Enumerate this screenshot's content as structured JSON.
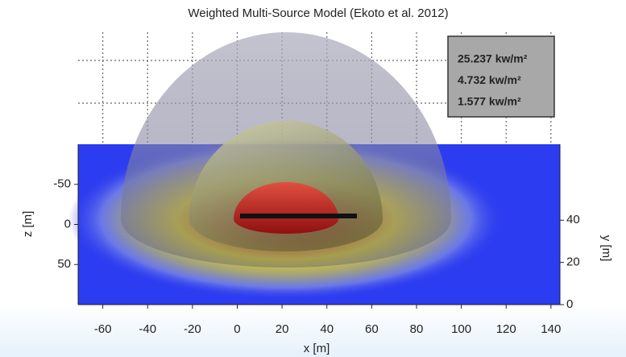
{
  "chart_data": {
    "type": "isosurface",
    "title": "Weighted Multi-Source Model (Ekoto et al. 2012)",
    "x_label": "x [m]",
    "z_label": "z [m]",
    "y_label": "y [m]",
    "xlim": [
      -71,
      144
    ],
    "xticks": [
      -60,
      -40,
      -20,
      0,
      20,
      40,
      60,
      80,
      100,
      120,
      140
    ],
    "zlim": [
      -100,
      100
    ],
    "zticks": [
      -50,
      0,
      50
    ],
    "ylim": [
      0,
      76
    ],
    "yticks": [
      0,
      20,
      40
    ],
    "grid": true,
    "legend": "upper right",
    "series": [
      {
        "name": "25.237 kw/m²",
        "color": "#ff1010",
        "value": 25.237
      },
      {
        "name": "4.732 kw/m²",
        "color": "#e6e600",
        "value": 4.732
      },
      {
        "name": "1.577 kw/m²",
        "color": "#1a1aa8",
        "value": 1.577
      }
    ]
  }
}
